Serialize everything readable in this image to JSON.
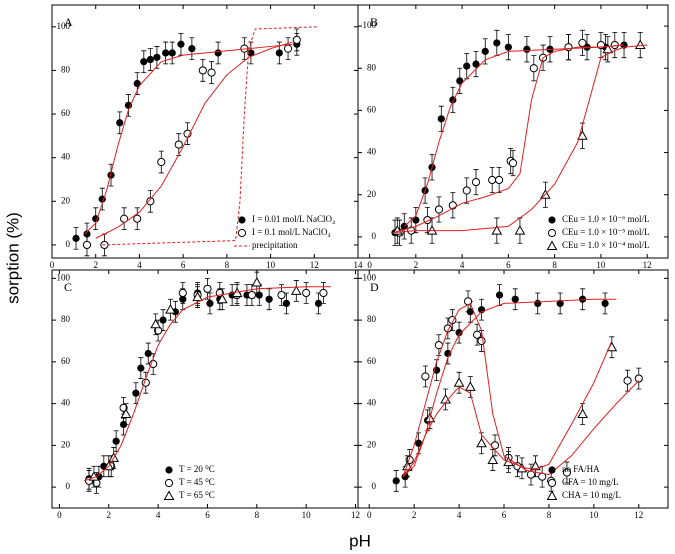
{
  "xlabel": "pH",
  "ylabel": "sorption (%)",
  "chart_data": [
    {
      "type": "scatter",
      "title": "A",
      "xlim": [
        0,
        14
      ],
      "ylim": [
        -6,
        110
      ],
      "xticks": [
        0,
        2,
        4,
        6,
        8,
        10,
        12,
        14
      ],
      "yticks": [
        0,
        20,
        40,
        60,
        80,
        100
      ],
      "legend": "lower right",
      "series": [
        {
          "name": "I = 0.01 mol/L NaClO₄",
          "marker": "filled-circle",
          "color": "#000000",
          "error": 5,
          "x": [
            1.1,
            1.6,
            2.0,
            2.3,
            2.7,
            3.1,
            3.5,
            3.9,
            4.2,
            4.5,
            4.8,
            5.2,
            5.5,
            5.9,
            6.4,
            7.6,
            9.1,
            10.4,
            11.2
          ],
          "values": [
            3,
            5,
            12,
            21,
            32,
            56,
            64,
            74,
            84,
            85,
            86,
            88,
            88,
            92,
            90,
            88,
            88,
            88,
            92
          ]
        },
        {
          "name": "I = 0.1 mol/L NaClO₄",
          "marker": "open-circle",
          "color": "#000000",
          "error": 5,
          "x": [
            1.6,
            2.4,
            3.3,
            3.9,
            4.5,
            5.0,
            5.8,
            6.2,
            6.9,
            7.3,
            8.8,
            10.8,
            11.2
          ],
          "values": [
            0,
            0,
            12,
            12,
            20,
            38,
            46,
            51,
            80,
            79,
            90,
            90,
            94
          ]
        },
        {
          "marker": "line",
          "line_style": "solid",
          "color": "#e02020",
          "x": [
            1.5,
            2,
            2.5,
            3,
            3.5,
            4,
            5,
            6,
            8,
            10,
            11
          ],
          "values": [
            5,
            10,
            25,
            45,
            62,
            73,
            84,
            87,
            89,
            91,
            92
          ]
        },
        {
          "marker": "line",
          "line_style": "solid",
          "color": "#e02020",
          "x": [
            2,
            3,
            4,
            5,
            6,
            7,
            8,
            9,
            10,
            11
          ],
          "values": [
            3,
            8,
            15,
            27,
            45,
            65,
            78,
            86,
            90,
            93
          ]
        },
        {
          "name": "precipitation",
          "marker": "line",
          "line_style": "dashed",
          "color": "#e02020",
          "x": [
            2.3,
            8.4,
            8.6,
            8.8,
            9.0,
            9.3,
            12.2
          ],
          "values": [
            0,
            2,
            20,
            60,
            90,
            99,
            100
          ]
        }
      ]
    },
    {
      "type": "scatter",
      "title": "B",
      "xlim": [
        -0.5,
        12.9
      ],
      "ylim": [
        -10,
        110
      ],
      "xticks": [
        0,
        2,
        4,
        6,
        8,
        10,
        12
      ],
      "yticks": [
        0,
        20,
        40,
        60,
        80,
        100
      ],
      "legend": "lower right",
      "series": [
        {
          "name": "CEu = 1.0 × 10⁻⁶ mol/L",
          "marker": "filled-circle",
          "color": "#000000",
          "error": 6,
          "x": [
            1.1,
            1.5,
            2.0,
            2.4,
            2.7,
            3.1,
            3.6,
            3.9,
            4.2,
            4.6,
            5.0,
            5.5,
            6.0,
            6.8,
            7.8,
            8.6,
            9.4,
            10.2,
            11.0
          ],
          "values": [
            2,
            5,
            8,
            22,
            33,
            56,
            65,
            74,
            81,
            82,
            88,
            92,
            90,
            89,
            89,
            90,
            90,
            90,
            91
          ]
        },
        {
          "name": "CEu = 1.0 × 10⁻⁵ mol/L",
          "marker": "open-circle",
          "color": "#000000",
          "error": 6,
          "x": [
            1.3,
            1.8,
            2.5,
            3.0,
            3.6,
            4.2,
            4.6,
            5.3,
            5.6,
            6.1,
            6.2,
            7.1,
            7.5,
            8.6,
            9.2,
            10.0,
            10.6
          ],
          "values": [
            2,
            3,
            8,
            13,
            15,
            22,
            26,
            27,
            27,
            36,
            35,
            80,
            85,
            90,
            92,
            91,
            91
          ]
        },
        {
          "name": "CEu = 1.0 × 10⁻⁴ mol/L",
          "marker": "open-triangle",
          "color": "#000000",
          "error": 6,
          "x": [
            1.2,
            2.7,
            5.5,
            6.5,
            7.6,
            9.2,
            10.3,
            11.7
          ],
          "values": [
            3,
            3,
            3,
            3,
            20,
            48,
            89,
            91
          ]
        },
        {
          "marker": "line",
          "line_style": "solid",
          "color": "#e02020",
          "x": [
            1.5,
            2,
            2.5,
            3,
            3.5,
            4,
            5,
            6,
            8,
            10,
            11
          ],
          "values": [
            5,
            10,
            25,
            45,
            62,
            73,
            84,
            88,
            89,
            90,
            91
          ]
        },
        {
          "marker": "line",
          "line_style": "solid",
          "color": "#e02020",
          "x": [
            1,
            2,
            3,
            4,
            5,
            6,
            6.5,
            7,
            7.5,
            8,
            9,
            10,
            11
          ],
          "values": [
            2,
            5,
            10,
            16,
            19,
            23,
            30,
            65,
            85,
            88,
            90,
            90,
            91
          ]
        },
        {
          "marker": "line",
          "line_style": "solid",
          "color": "#e02020",
          "x": [
            1,
            2,
            4,
            6,
            7,
            8,
            9,
            9.5,
            10,
            10.5,
            11,
            12
          ],
          "values": [
            2,
            3,
            3,
            5,
            13,
            25,
            45,
            65,
            85,
            88,
            90,
            91
          ]
        }
      ]
    },
    {
      "type": "scatter",
      "title": "C",
      "xlim": [
        -0.3,
        12.1
      ],
      "ylim": [
        -10,
        104
      ],
      "xticks": [
        0,
        2,
        4,
        6,
        8,
        10,
        12
      ],
      "yticks": [
        0,
        20,
        40,
        60,
        80,
        100
      ],
      "legend": "lower center",
      "series": [
        {
          "name": "T = 20 ⁰C",
          "marker": "filled-circle",
          "color": "#000000",
          "error": 5,
          "x": [
            1.2,
            1.6,
            1.8,
            2.3,
            2.6,
            3.1,
            3.3,
            3.6,
            4.2,
            4.7,
            5.0,
            5.6,
            6.1,
            6.5,
            7.0,
            7.6,
            8.1,
            8.5,
            9.2,
            10.5
          ],
          "values": [
            4,
            5,
            10,
            22,
            30,
            45,
            57,
            64,
            80,
            84,
            90,
            93,
            88,
            90,
            92,
            92,
            92,
            90,
            88,
            88
          ]
        },
        {
          "name": "T = 45 ⁰C",
          "marker": "open-circle",
          "color": "#000000",
          "error": 5,
          "x": [
            1.2,
            1.5,
            2.1,
            2.6,
            3.5,
            3.8,
            4.0,
            5.0,
            5.6,
            6.0,
            6.5,
            7.2,
            7.8,
            9.0,
            10.0,
            10.7
          ],
          "values": [
            3,
            2,
            10,
            38,
            50,
            59,
            75,
            93,
            92,
            95,
            93,
            92,
            92,
            92,
            93,
            93
          ]
        },
        {
          "name": "T = 65 ⁰C",
          "marker": "open-triangle",
          "color": "#000000",
          "error": 5,
          "x": [
            1.4,
            2.0,
            2.2,
            2.7,
            3.9,
            4.5,
            5.6,
            6.6,
            7.2,
            8.0,
            9.6
          ],
          "values": [
            5,
            10,
            14,
            35,
            78,
            85,
            91,
            90,
            93,
            98,
            94
          ]
        },
        {
          "marker": "line",
          "line_style": "solid",
          "color": "#e02020",
          "x": [
            1,
            1.5,
            2,
            2.5,
            3,
            3.5,
            4,
            4.5,
            5,
            6,
            8,
            10,
            11
          ],
          "values": [
            3,
            5,
            10,
            20,
            35,
            52,
            68,
            78,
            85,
            91,
            95,
            96,
            96
          ]
        }
      ]
    },
    {
      "type": "scatter",
      "title": "D",
      "xlim": [
        -0.5,
        13.3
      ],
      "ylim": [
        -10,
        104
      ],
      "xticks": [
        0,
        2,
        4,
        6,
        8,
        10,
        12
      ],
      "yticks": [
        0,
        20,
        40,
        60,
        80,
        100
      ],
      "legend": "lower right",
      "series": [
        {
          "name": "no FA/HA",
          "marker": "filled-circle",
          "color": "#000000",
          "error": 5,
          "x": [
            1.2,
            1.6,
            2.2,
            2.6,
            3.0,
            3.5,
            4.0,
            4.5,
            5.0,
            5.8,
            6.5,
            7.5,
            8.5,
            9.5,
            10.5
          ],
          "values": [
            3,
            5,
            21,
            32,
            56,
            64,
            74,
            84,
            85,
            92,
            90,
            88,
            88,
            90,
            88
          ]
        },
        {
          "name": "CFA = 10 mg/L",
          "marker": "open-circle",
          "color": "#000000",
          "error": 5,
          "x": [
            1.8,
            2.5,
            3.1,
            3.5,
            3.7,
            4.4,
            4.8,
            5.0,
            5.6,
            6.2,
            6.6,
            7.2,
            7.7,
            8.1,
            8.8,
            11.5,
            12.0
          ],
          "values": [
            13,
            53,
            68,
            76,
            80,
            89,
            73,
            70,
            20,
            14,
            10,
            6,
            5,
            3,
            7,
            51,
            52
          ]
        },
        {
          "name": "CHA = 10 mg/L",
          "marker": "open-triangle",
          "color": "#000000",
          "error": 5,
          "x": [
            1.7,
            2.7,
            3.4,
            4.0,
            4.5,
            5.0,
            5.5,
            6.2,
            6.8,
            7.4,
            9.5,
            10.8
          ],
          "values": [
            10,
            33,
            42,
            50,
            48,
            21,
            13,
            12,
            9,
            10,
            35,
            67
          ]
        },
        {
          "marker": "line",
          "line_style": "solid",
          "color": "#e02020",
          "x": [
            1.5,
            2,
            2.5,
            3,
            3.5,
            4,
            5,
            6,
            8,
            10,
            11
          ],
          "values": [
            5,
            10,
            25,
            45,
            62,
            73,
            84,
            88,
            89,
            90,
            90
          ]
        },
        {
          "marker": "line",
          "line_style": "solid",
          "color": "#e02020",
          "x": [
            1.5,
            2,
            2.5,
            3,
            3.5,
            4,
            4.5,
            5,
            5.5,
            6,
            7,
            8,
            9,
            10,
            11,
            12
          ],
          "values": [
            5,
            20,
            40,
            60,
            75,
            85,
            88,
            75,
            35,
            15,
            8,
            6,
            15,
            28,
            40,
            51
          ]
        },
        {
          "marker": "line",
          "line_style": "solid",
          "color": "#e02020",
          "x": [
            1.5,
            2,
            2.5,
            3,
            3.5,
            4,
            4.5,
            5,
            6,
            7,
            7.5,
            8,
            9,
            10,
            10.8
          ],
          "values": [
            5,
            12,
            25,
            35,
            42,
            48,
            45,
            25,
            13,
            9,
            9,
            11,
            30,
            50,
            70
          ]
        }
      ]
    }
  ]
}
